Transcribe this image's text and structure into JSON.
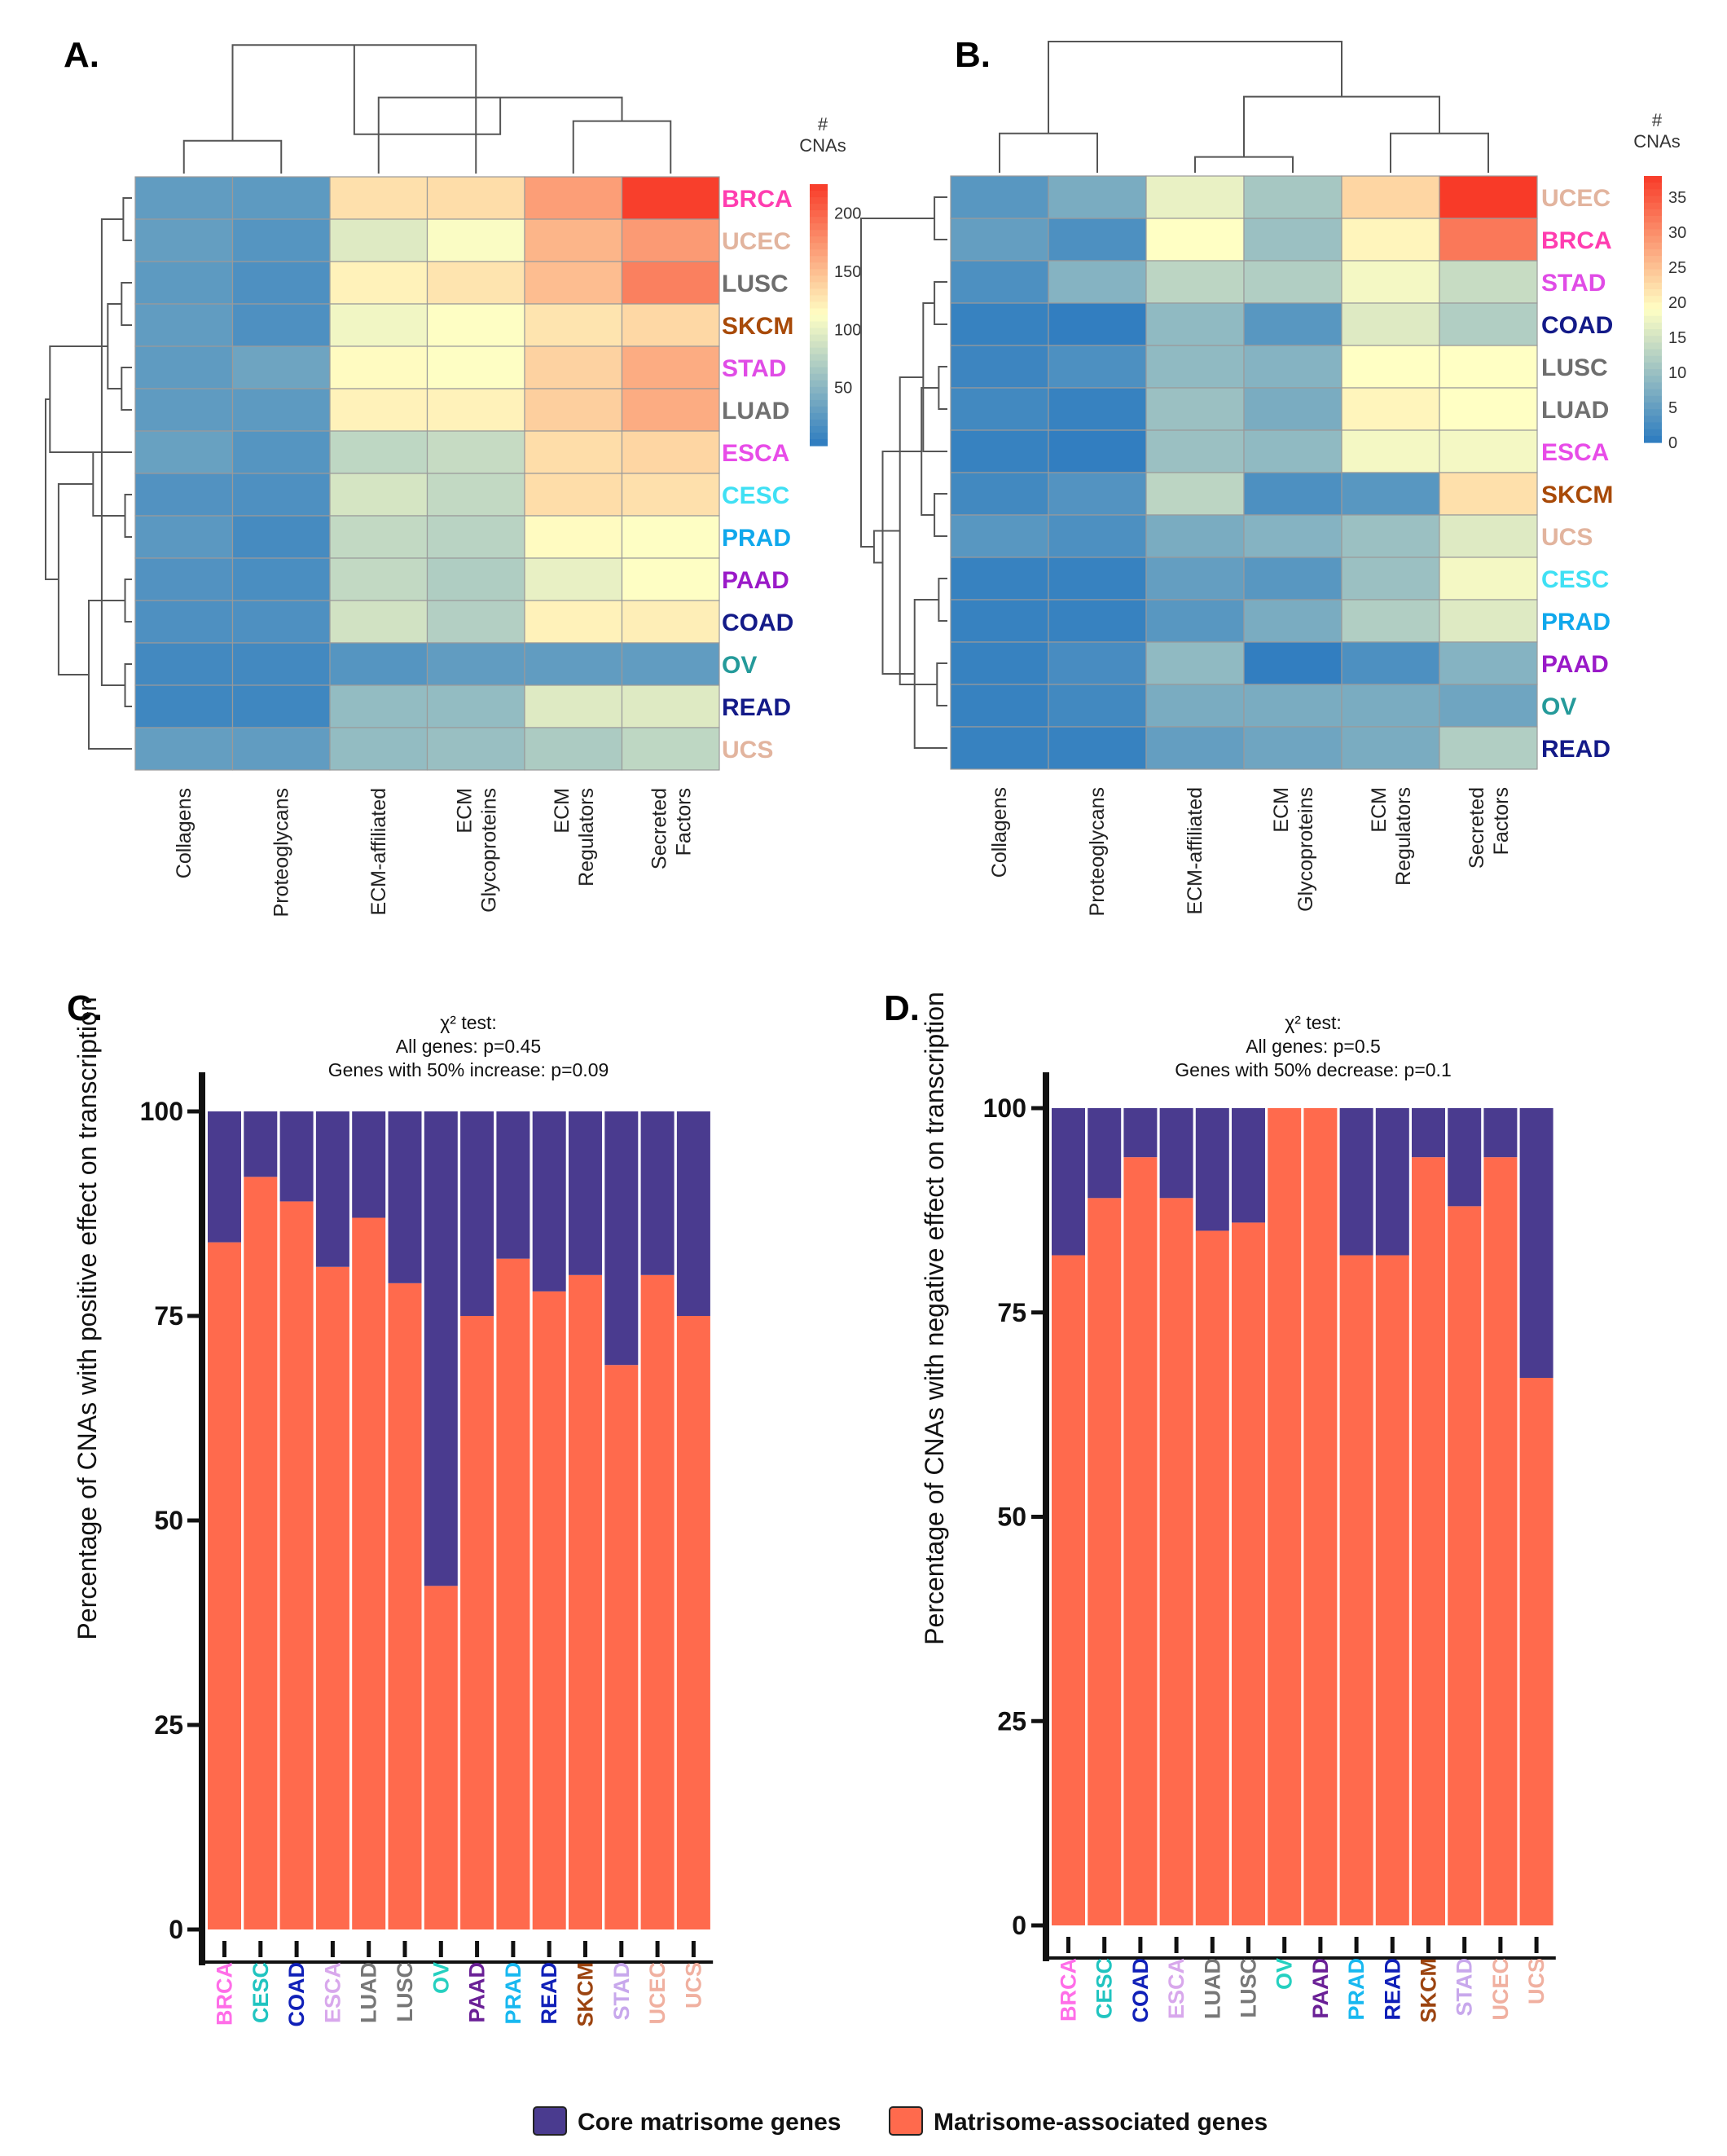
{
  "figure": {
    "panel_labels": [
      "A.",
      "B.",
      "C.",
      "D."
    ],
    "legend": {
      "core_label": "Core matrisome genes",
      "assoc_label": "Matrisome-associated genes"
    }
  },
  "colors": {
    "core": "#4a3b8f",
    "assoc": "#ff6a4d",
    "tree": "#555555",
    "axis": "#111111",
    "grid": "#9a9a9a",
    "heat_low": "#2c7bc0",
    "heat_mid": "#ffffc4",
    "heat_high": "#f83a28",
    "cancers": {
      "BRCA": "#ff3db0",
      "UCEC": "#e2b49e",
      "LUSC": "#6d6d6d",
      "SKCM": "#a84a08",
      "STAD": "#e04ce6",
      "LUAD": "#707070",
      "ESCA": "#e84ce8",
      "CESC": "#3fe0f4",
      "PRAD": "#10a8ec",
      "PAAD": "#9a1ac8",
      "COAD": "#131a88",
      "OV": "#249a9a",
      "READ": "#131a88",
      "UCS": "#e2b49e"
    },
    "cancers_bar": {
      "BRCA": "#ff6ee8",
      "CESC": "#20c4c0",
      "COAD": "#1020b8",
      "ESCA": "#d8a8ec",
      "LUAD": "#777777",
      "LUSC": "#777777",
      "OV": "#25d0c0",
      "PAAD": "#6a2096",
      "PRAD": "#18b8f0",
      "READ": "#1020b8",
      "SKCM": "#9c4410",
      "STAD": "#c8a8ec",
      "UCEC": "#f0b0a0",
      "UCS": "#f0b0a0"
    }
  },
  "chart_data": [
    {
      "panel": "A.",
      "type": "heatmap",
      "columns": [
        "Collagens",
        "Proteoglycans",
        "ECM-affiliated",
        "ECM\nGlycoproteins",
        "ECM\nRegulators",
        "Secreted\nFactors"
      ],
      "rows": [
        "BRCA",
        "UCEC",
        "LUSC",
        "SKCM",
        "STAD",
        "LUAD",
        "ESCA",
        "CESC",
        "PRAD",
        "PAAD",
        "COAD",
        "OV",
        "READ",
        "UCS"
      ],
      "values": [
        [
          28,
          26,
          130,
          132,
          168,
          222
        ],
        [
          30,
          22,
          95,
          110,
          155,
          170
        ],
        [
          26,
          18,
          120,
          128,
          150,
          185
        ],
        [
          28,
          18,
          105,
          112,
          128,
          135
        ],
        [
          27,
          35,
          115,
          112,
          138,
          160
        ],
        [
          27,
          26,
          120,
          120,
          140,
          160
        ],
        [
          32,
          22,
          78,
          82,
          132,
          136
        ],
        [
          20,
          18,
          90,
          80,
          132,
          130
        ],
        [
          25,
          14,
          80,
          75,
          115,
          112
        ],
        [
          20,
          16,
          80,
          70,
          100,
          112
        ],
        [
          18,
          18,
          88,
          72,
          120,
          122
        ],
        [
          12,
          12,
          22,
          28,
          28,
          28
        ],
        [
          10,
          10,
          55,
          55,
          95,
          95
        ],
        [
          30,
          28,
          55,
          58,
          68,
          78
        ]
      ],
      "legend_title": "#\nCNAs",
      "legend_ticks": [
        50,
        100,
        150,
        200
      ],
      "vmin": 0,
      "vmax": 225
    },
    {
      "panel": "B.",
      "type": "heatmap",
      "columns": [
        "Collagens",
        "Proteoglycans",
        "ECM-affiliated",
        "ECM\nGlycoproteins",
        "ECM\nRegulators",
        "Secreted\nFactors"
      ],
      "rows": [
        "UCEC",
        "BRCA",
        "STAD",
        "COAD",
        "LUSC",
        "LUAD",
        "ESCA",
        "SKCM",
        "UCS",
        "CESC",
        "PRAD",
        "PAAD",
        "OV",
        "READ"
      ],
      "values": [
        [
          4,
          7,
          17,
          11,
          23,
          38
        ],
        [
          5,
          3,
          19,
          10,
          20,
          32
        ],
        [
          3,
          8,
          13,
          12,
          18,
          14
        ],
        [
          1,
          0.5,
          9,
          4,
          16,
          12
        ],
        [
          1.5,
          3,
          9,
          8,
          19,
          19
        ],
        [
          2,
          1,
          10,
          7,
          20,
          19
        ],
        [
          1,
          0.5,
          10,
          9,
          18,
          18
        ],
        [
          2,
          3.5,
          13,
          3,
          4,
          22
        ],
        [
          4,
          3,
          7,
          8,
          10,
          16
        ],
        [
          1,
          1,
          5,
          4,
          10,
          18
        ],
        [
          1,
          1,
          4,
          7,
          12,
          16
        ],
        [
          1,
          2.5,
          9,
          0.5,
          3,
          8
        ],
        [
          1,
          2,
          7,
          7,
          7,
          6
        ],
        [
          1,
          1,
          5,
          6,
          7,
          12
        ]
      ],
      "legend_title": "#\nCNAs",
      "legend_ticks": [
        0,
        5,
        10,
        15,
        20,
        25,
        30,
        35
      ],
      "vmin": 0,
      "vmax": 38
    },
    {
      "panel": "C.",
      "type": "bar",
      "stacked": true,
      "annotation": [
        "χ² test:",
        "All genes: p=0.45",
        "Genes with 50% increase: p=0.09"
      ],
      "ylabel": "Percentage of CNAs with positive effect on transcription",
      "yticks": [
        0,
        25,
        50,
        75,
        100
      ],
      "ylim": [
        0,
        100
      ],
      "categories": [
        "BRCA",
        "CESC",
        "COAD",
        "ESCA",
        "LUAD",
        "LUSC",
        "OV",
        "PAAD",
        "PRAD",
        "READ",
        "SKCM",
        "STAD",
        "UCEC",
        "UCS"
      ],
      "series": [
        {
          "name": "Matrisome-associated genes",
          "values": [
            84,
            92,
            89,
            81,
            87,
            79,
            42,
            75,
            82,
            78,
            80,
            69,
            80,
            75
          ]
        },
        {
          "name": "Core matrisome genes",
          "values": [
            16,
            8,
            11,
            19,
            13,
            21,
            58,
            25,
            18,
            22,
            20,
            31,
            20,
            25
          ]
        }
      ]
    },
    {
      "panel": "D.",
      "type": "bar",
      "stacked": true,
      "annotation": [
        "χ² test:",
        "All genes: p=0.5",
        "Genes with 50% decrease: p=0.1"
      ],
      "ylabel": "Percentage of CNAs with negative effect on transcription",
      "yticks": [
        0,
        25,
        50,
        75,
        100
      ],
      "ylim": [
        0,
        100
      ],
      "categories": [
        "BRCA",
        "CESC",
        "COAD",
        "ESCA",
        "LUAD",
        "LUSC",
        "OV",
        "PAAD",
        "PRAD",
        "READ",
        "SKCM",
        "STAD",
        "UCEC",
        "UCS"
      ],
      "series": [
        {
          "name": "Matrisome-associated genes",
          "values": [
            82,
            89,
            94,
            89,
            85,
            86,
            100,
            100,
            82,
            82,
            94,
            88,
            94,
            67
          ]
        },
        {
          "name": "Core matrisome genes",
          "values": [
            18,
            11,
            6,
            11,
            15,
            14,
            0,
            0,
            18,
            18,
            6,
            12,
            6,
            33
          ]
        }
      ]
    }
  ]
}
